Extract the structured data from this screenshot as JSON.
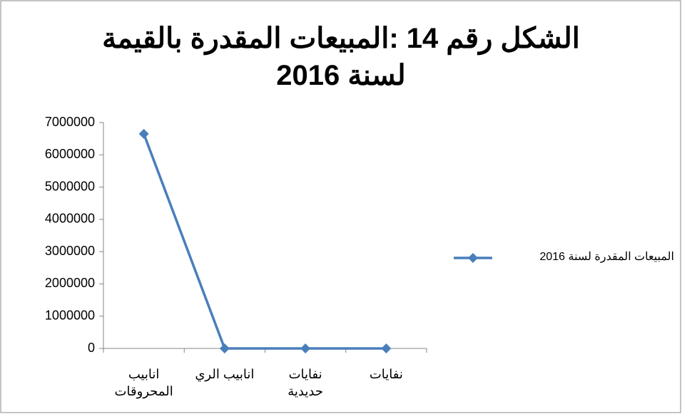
{
  "chart_data": {
    "type": "line",
    "title": "الشكل رقم 14 :المبيعات المقدرة بالقيمة لسنة 2016",
    "categories": [
      "انابيب المحروقات",
      "انابيب الري",
      "نفايات حديدية",
      "نفايات"
    ],
    "series": [
      {
        "name": "المبيعات المقدرة لسنة 2016",
        "color": "#4a7ebb",
        "values": [
          6650000,
          0,
          0,
          0
        ]
      }
    ],
    "ylim": [
      0,
      7000000
    ],
    "yticks": [
      0,
      1000000,
      2000000,
      3000000,
      4000000,
      5000000,
      6000000,
      7000000
    ],
    "grid": false,
    "legend": "right"
  }
}
